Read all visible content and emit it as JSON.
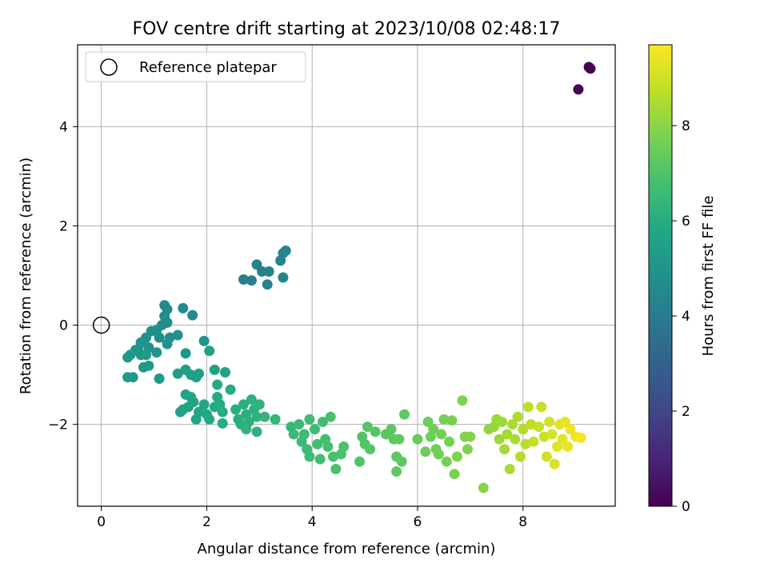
{
  "chart_data": {
    "type": "scatter",
    "title": "FOV centre drift starting at 2023/10/08 02:48:17",
    "xlabel": "Angular distance from reference (arcmin)",
    "ylabel": "Rotation from reference (arcmin)",
    "xlim": [
      -0.45,
      9.75
    ],
    "ylim": [
      -3.65,
      5.65
    ],
    "xticks": [
      0,
      2,
      4,
      6,
      8
    ],
    "yticks": [
      -2,
      0,
      2,
      4
    ],
    "grid": true,
    "legend": {
      "position": "top-left",
      "entries": [
        "Reference platepar"
      ]
    },
    "reference_point": {
      "name": "Reference platepar",
      "x": 0,
      "y": 0
    },
    "colorbar": {
      "label": "Hours from first FF file",
      "range": [
        0,
        9.7
      ],
      "ticks": [
        0,
        2,
        4,
        6,
        8
      ],
      "colormap": "viridis"
    },
    "series": [
      {
        "points": [
          [
            9.25,
            5.2,
            0.05
          ],
          [
            9.28,
            5.17,
            0.1
          ],
          [
            9.05,
            4.75,
            0.15
          ],
          [
            2.7,
            0.92,
            4.1
          ],
          [
            2.85,
            0.9,
            4.15
          ],
          [
            2.95,
            1.22,
            4.2
          ],
          [
            3.05,
            1.08,
            4.22
          ],
          [
            3.15,
            0.82,
            4.25
          ],
          [
            3.18,
            1.08,
            4.28
          ],
          [
            3.4,
            1.3,
            4.3
          ],
          [
            3.45,
            1.45,
            4.32
          ],
          [
            3.5,
            1.5,
            4.35
          ],
          [
            3.45,
            0.96,
            4.4
          ],
          [
            1.2,
            0.4,
            4.5
          ],
          [
            1.25,
            0.32,
            4.55
          ],
          [
            1.55,
            0.34,
            4.6
          ],
          [
            1.73,
            0.2,
            4.62
          ],
          [
            1.2,
            0.18,
            4.65
          ],
          [
            1.25,
            0.05,
            4.68
          ],
          [
            1.15,
            0.0,
            4.7
          ],
          [
            1.05,
            -0.1,
            4.72
          ],
          [
            1.1,
            -0.25,
            4.75
          ],
          [
            0.95,
            -0.12,
            4.78
          ],
          [
            1.3,
            -0.25,
            4.8
          ],
          [
            1.45,
            -0.2,
            4.82
          ],
          [
            1.25,
            -0.38,
            4.85
          ],
          [
            0.85,
            -0.25,
            4.88
          ],
          [
            0.75,
            -0.35,
            4.9
          ],
          [
            0.7,
            -0.5,
            4.92
          ],
          [
            0.9,
            -0.45,
            4.95
          ],
          [
            1.05,
            -0.55,
            4.98
          ],
          [
            1.6,
            -0.57,
            5.0
          ],
          [
            1.95,
            -0.32,
            5.02
          ],
          [
            0.65,
            -0.5,
            5.05
          ],
          [
            0.55,
            -0.6,
            5.08
          ],
          [
            0.5,
            -0.65,
            5.1
          ],
          [
            0.75,
            -0.6,
            5.12
          ],
          [
            0.8,
            -0.85,
            5.15
          ],
          [
            0.9,
            -0.82,
            5.18
          ],
          [
            0.5,
            -1.05,
            5.2
          ],
          [
            0.6,
            -1.05,
            5.22
          ],
          [
            1.1,
            -1.08,
            5.25
          ],
          [
            0.85,
            -0.6,
            5.28
          ],
          [
            1.45,
            -0.98,
            5.35
          ],
          [
            1.6,
            -0.9,
            5.4
          ],
          [
            1.7,
            -1.0,
            5.42
          ],
          [
            1.8,
            -1.05,
            5.45
          ],
          [
            1.85,
            -0.98,
            5.48
          ],
          [
            2.05,
            -0.52,
            5.5
          ],
          [
            2.15,
            -0.9,
            5.52
          ],
          [
            2.35,
            -0.95,
            5.55
          ],
          [
            1.5,
            -1.75,
            5.58
          ],
          [
            1.55,
            -1.7,
            5.6
          ],
          [
            1.65,
            -1.65,
            5.62
          ],
          [
            1.75,
            -1.55,
            5.65
          ],
          [
            1.6,
            -1.4,
            5.68
          ],
          [
            1.7,
            -1.45,
            5.7
          ],
          [
            1.8,
            -1.9,
            5.72
          ],
          [
            1.85,
            -1.75,
            5.75
          ],
          [
            1.95,
            -1.6,
            5.78
          ],
          [
            2.0,
            -1.8,
            5.8
          ],
          [
            2.05,
            -1.9,
            5.82
          ],
          [
            2.15,
            -1.65,
            5.85
          ],
          [
            2.2,
            -1.45,
            5.88
          ],
          [
            2.2,
            -1.2,
            5.9
          ],
          [
            2.25,
            -1.6,
            5.92
          ],
          [
            2.3,
            -1.75,
            5.95
          ],
          [
            2.3,
            -1.98,
            5.98
          ],
          [
            2.45,
            -1.3,
            6.0
          ],
          [
            2.55,
            -1.7,
            6.02
          ],
          [
            2.6,
            -1.9,
            6.05
          ],
          [
            2.65,
            -2.0,
            6.08
          ],
          [
            2.7,
            -1.6,
            6.1
          ],
          [
            2.75,
            -1.8,
            6.12
          ],
          [
            2.8,
            -1.95,
            6.15
          ],
          [
            2.85,
            -1.5,
            6.18
          ],
          [
            2.9,
            -1.7,
            6.2
          ],
          [
            2.95,
            -1.85,
            6.22
          ],
          [
            2.95,
            -2.15,
            6.25
          ],
          [
            3.0,
            -1.6,
            6.28
          ],
          [
            2.75,
            -2.1,
            6.3
          ],
          [
            3.1,
            -1.85,
            6.32
          ],
          [
            3.3,
            -1.9,
            6.35
          ],
          [
            3.6,
            -2.05,
            6.45
          ],
          [
            3.65,
            -2.2,
            6.5
          ],
          [
            3.75,
            -2.0,
            6.52
          ],
          [
            3.8,
            -2.35,
            6.55
          ],
          [
            3.85,
            -2.2,
            6.58
          ],
          [
            3.9,
            -2.5,
            6.6
          ],
          [
            3.95,
            -2.65,
            6.62
          ],
          [
            3.95,
            -1.9,
            6.65
          ],
          [
            4.05,
            -2.1,
            6.68
          ],
          [
            4.1,
            -2.4,
            6.7
          ],
          [
            4.15,
            -2.7,
            6.72
          ],
          [
            4.2,
            -1.95,
            6.75
          ],
          [
            4.25,
            -2.3,
            6.78
          ],
          [
            4.3,
            -2.45,
            6.8
          ],
          [
            4.35,
            -1.85,
            6.82
          ],
          [
            4.4,
            -2.65,
            6.85
          ],
          [
            4.45,
            -2.9,
            6.88
          ],
          [
            4.55,
            -2.6,
            6.9
          ],
          [
            4.6,
            -2.45,
            6.92
          ],
          [
            4.9,
            -2.75,
            7.0
          ],
          [
            4.95,
            -2.25,
            7.02
          ],
          [
            5.0,
            -2.4,
            7.05
          ],
          [
            5.05,
            -2.05,
            7.08
          ],
          [
            5.1,
            -2.5,
            7.1
          ],
          [
            5.2,
            -2.15,
            7.12
          ],
          [
            5.4,
            -2.2,
            7.15
          ],
          [
            5.5,
            -2.1,
            7.18
          ],
          [
            5.55,
            -2.3,
            7.2
          ],
          [
            5.6,
            -2.65,
            7.22
          ],
          [
            5.6,
            -2.95,
            7.25
          ],
          [
            5.7,
            -2.75,
            7.28
          ],
          [
            5.75,
            -1.8,
            7.3
          ],
          [
            5.65,
            -2.3,
            7.32
          ],
          [
            6.0,
            -2.3,
            7.45
          ],
          [
            6.15,
            -2.55,
            7.5
          ],
          [
            6.2,
            -1.95,
            7.52
          ],
          [
            6.25,
            -2.25,
            7.55
          ],
          [
            6.3,
            -2.1,
            7.58
          ],
          [
            6.35,
            -2.5,
            7.6
          ],
          [
            6.4,
            -2.6,
            7.62
          ],
          [
            6.45,
            -2.2,
            7.65
          ],
          [
            6.5,
            -1.9,
            7.68
          ],
          [
            6.55,
            -2.75,
            7.7
          ],
          [
            6.6,
            -2.35,
            7.72
          ],
          [
            6.65,
            -1.92,
            7.75
          ],
          [
            6.7,
            -3.0,
            7.78
          ],
          [
            6.75,
            -2.65,
            7.8
          ],
          [
            6.85,
            -1.52,
            7.82
          ],
          [
            6.9,
            -2.25,
            7.85
          ],
          [
            6.95,
            -2.5,
            7.88
          ],
          [
            7.0,
            -2.25,
            7.9
          ],
          [
            7.25,
            -3.28,
            7.95
          ],
          [
            7.35,
            -2.1,
            8.1
          ],
          [
            7.45,
            -2.05,
            8.15
          ],
          [
            7.5,
            -1.9,
            8.2
          ],
          [
            7.55,
            -2.3,
            8.25
          ],
          [
            7.6,
            -1.95,
            8.3
          ],
          [
            7.65,
            -2.5,
            8.35
          ],
          [
            7.7,
            -2.2,
            8.4
          ],
          [
            7.75,
            -2.9,
            8.42
          ],
          [
            7.8,
            -2.0,
            8.45
          ],
          [
            7.85,
            -2.3,
            8.48
          ],
          [
            7.9,
            -1.85,
            8.5
          ],
          [
            7.95,
            -2.65,
            8.55
          ],
          [
            8.0,
            -2.1,
            8.6
          ],
          [
            8.05,
            -2.4,
            8.65
          ],
          [
            8.1,
            -1.65,
            8.7
          ],
          [
            8.15,
            -2.0,
            8.75
          ],
          [
            8.2,
            -2.35,
            8.8
          ],
          [
            8.3,
            -2.05,
            8.85
          ],
          [
            8.35,
            -1.65,
            8.9
          ],
          [
            8.4,
            -2.25,
            8.95
          ],
          [
            8.45,
            -2.65,
            9.0
          ],
          [
            8.5,
            -1.95,
            9.05
          ],
          [
            8.55,
            -2.2,
            9.1
          ],
          [
            8.6,
            -2.8,
            9.15
          ],
          [
            8.65,
            -2.45,
            9.2
          ],
          [
            8.7,
            -2.0,
            9.25
          ],
          [
            8.75,
            -2.3,
            9.3
          ],
          [
            8.8,
            -1.95,
            9.35
          ],
          [
            8.85,
            -2.45,
            9.4
          ],
          [
            8.9,
            -2.1,
            9.45
          ],
          [
            9.0,
            -2.25,
            9.5
          ],
          [
            9.1,
            -2.27,
            9.55
          ]
        ]
      }
    ]
  }
}
